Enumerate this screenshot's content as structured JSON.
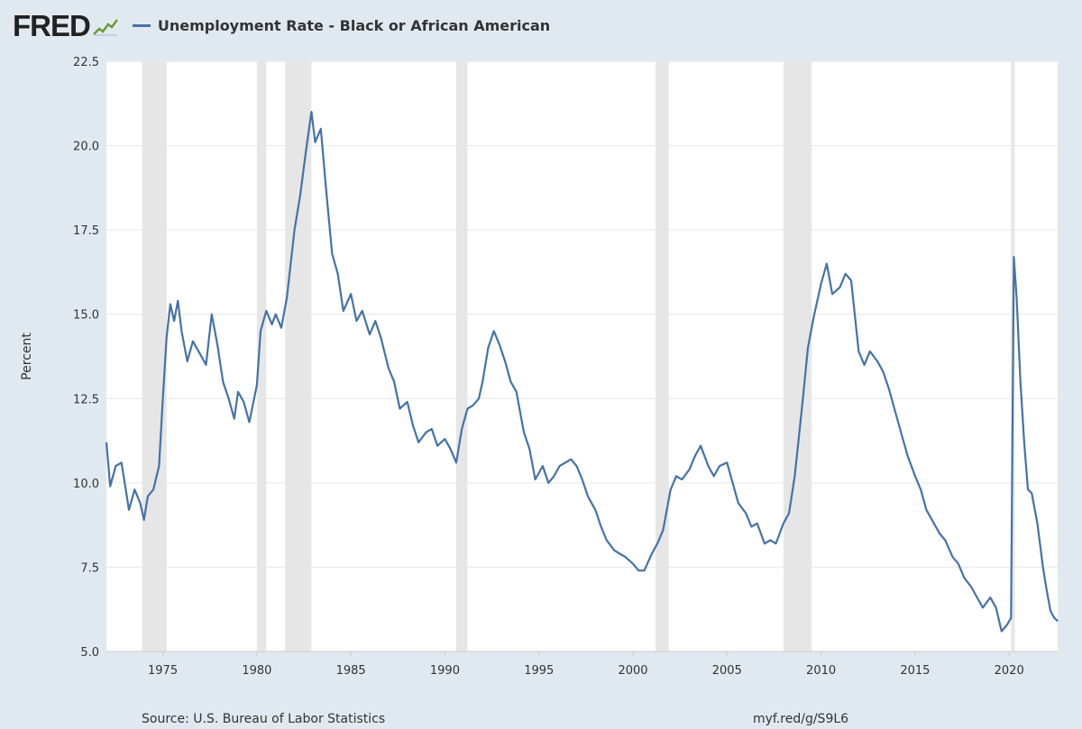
{
  "header": {
    "logo_text": "FRED",
    "logo_icon": "trend-line-icon",
    "legend_label": "Unemployment Rate - Black or African American"
  },
  "footer": {
    "source": "Source: U.S. Bureau of Labor Statistics",
    "link": "myf.red/g/S9L6"
  },
  "colors": {
    "line": "#4572a7",
    "background": "#e1e9f0",
    "plot": "#ffffff",
    "recession": "#e6e6e6",
    "grid": "#e6e6e6"
  },
  "chart_data": {
    "type": "line",
    "title": "",
    "xlabel": "",
    "ylabel": "Percent",
    "xlim": [
      1972.0,
      2022.58
    ],
    "ylim": [
      5.0,
      22.5
    ],
    "grid": "horizontal",
    "legend_position": "top-left",
    "x_ticks": [
      "1975",
      "1980",
      "1985",
      "1990",
      "1995",
      "2000",
      "2005",
      "2010",
      "2015",
      "2020"
    ],
    "y_ticks": [
      "5.0",
      "7.5",
      "10.0",
      "12.5",
      "15.0",
      "17.5",
      "20.0",
      "22.5"
    ],
    "recessions": [
      [
        1973.9,
        1975.2
      ],
      [
        1980.0,
        1980.5
      ],
      [
        1981.5,
        1982.9
      ],
      [
        1990.6,
        1991.2
      ],
      [
        2001.2,
        2001.9
      ],
      [
        2008.0,
        2009.5
      ],
      [
        2020.1,
        2020.3
      ]
    ],
    "series": [
      {
        "name": "Unemployment Rate - Black or African American",
        "points": [
          [
            1972.0,
            11.2
          ],
          [
            1972.2,
            9.9
          ],
          [
            1972.5,
            10.5
          ],
          [
            1972.8,
            10.6
          ],
          [
            1973.0,
            9.9
          ],
          [
            1973.2,
            9.2
          ],
          [
            1973.5,
            9.8
          ],
          [
            1973.8,
            9.4
          ],
          [
            1974.0,
            8.9
          ],
          [
            1974.2,
            9.6
          ],
          [
            1974.5,
            9.8
          ],
          [
            1974.8,
            10.5
          ],
          [
            1975.0,
            12.5
          ],
          [
            1975.2,
            14.3
          ],
          [
            1975.4,
            15.3
          ],
          [
            1975.6,
            14.8
          ],
          [
            1975.8,
            15.4
          ],
          [
            1976.0,
            14.5
          ],
          [
            1976.3,
            13.6
          ],
          [
            1976.6,
            14.2
          ],
          [
            1977.0,
            13.8
          ],
          [
            1977.3,
            13.5
          ],
          [
            1977.6,
            15.0
          ],
          [
            1977.9,
            14.1
          ],
          [
            1978.2,
            13.0
          ],
          [
            1978.5,
            12.5
          ],
          [
            1978.8,
            11.9
          ],
          [
            1979.0,
            12.7
          ],
          [
            1979.3,
            12.4
          ],
          [
            1979.6,
            11.8
          ],
          [
            1980.0,
            12.9
          ],
          [
            1980.2,
            14.5
          ],
          [
            1980.5,
            15.1
          ],
          [
            1980.8,
            14.7
          ],
          [
            1981.0,
            15.0
          ],
          [
            1981.3,
            14.6
          ],
          [
            1981.6,
            15.5
          ],
          [
            1982.0,
            17.5
          ],
          [
            1982.3,
            18.5
          ],
          [
            1982.6,
            19.8
          ],
          [
            1982.9,
            21.0
          ],
          [
            1983.1,
            20.1
          ],
          [
            1983.4,
            20.5
          ],
          [
            1983.7,
            18.6
          ],
          [
            1984.0,
            16.8
          ],
          [
            1984.3,
            16.2
          ],
          [
            1984.6,
            15.1
          ],
          [
            1985.0,
            15.6
          ],
          [
            1985.3,
            14.8
          ],
          [
            1985.6,
            15.1
          ],
          [
            1986.0,
            14.4
          ],
          [
            1986.3,
            14.8
          ],
          [
            1986.6,
            14.3
          ],
          [
            1987.0,
            13.4
          ],
          [
            1987.3,
            13.0
          ],
          [
            1987.6,
            12.2
          ],
          [
            1988.0,
            12.4
          ],
          [
            1988.3,
            11.7
          ],
          [
            1988.6,
            11.2
          ],
          [
            1989.0,
            11.5
          ],
          [
            1989.3,
            11.6
          ],
          [
            1989.6,
            11.1
          ],
          [
            1990.0,
            11.3
          ],
          [
            1990.3,
            11.0
          ],
          [
            1990.6,
            10.6
          ],
          [
            1990.9,
            11.6
          ],
          [
            1991.2,
            12.2
          ],
          [
            1991.5,
            12.3
          ],
          [
            1991.8,
            12.5
          ],
          [
            1992.0,
            13.0
          ],
          [
            1992.3,
            14.0
          ],
          [
            1992.6,
            14.5
          ],
          [
            1992.9,
            14.1
          ],
          [
            1993.2,
            13.6
          ],
          [
            1993.5,
            13.0
          ],
          [
            1993.8,
            12.7
          ],
          [
            1994.2,
            11.5
          ],
          [
            1994.5,
            11.0
          ],
          [
            1994.8,
            10.1
          ],
          [
            1995.2,
            10.5
          ],
          [
            1995.5,
            10.0
          ],
          [
            1995.8,
            10.2
          ],
          [
            1996.1,
            10.5
          ],
          [
            1996.4,
            10.6
          ],
          [
            1996.7,
            10.7
          ],
          [
            1997.0,
            10.5
          ],
          [
            1997.3,
            10.1
          ],
          [
            1997.6,
            9.6
          ],
          [
            1998.0,
            9.2
          ],
          [
            1998.3,
            8.7
          ],
          [
            1998.6,
            8.3
          ],
          [
            1999.0,
            8.0
          ],
          [
            1999.3,
            7.9
          ],
          [
            1999.6,
            7.8
          ],
          [
            2000.0,
            7.6
          ],
          [
            2000.3,
            7.4
          ],
          [
            2000.6,
            7.4
          ],
          [
            2001.0,
            7.9
          ],
          [
            2001.3,
            8.2
          ],
          [
            2001.6,
            8.6
          ],
          [
            2002.0,
            9.8
          ],
          [
            2002.3,
            10.2
          ],
          [
            2002.6,
            10.1
          ],
          [
            2003.0,
            10.4
          ],
          [
            2003.3,
            10.8
          ],
          [
            2003.6,
            11.1
          ],
          [
            2004.0,
            10.5
          ],
          [
            2004.3,
            10.2
          ],
          [
            2004.6,
            10.5
          ],
          [
            2005.0,
            10.6
          ],
          [
            2005.3,
            10.0
          ],
          [
            2005.6,
            9.4
          ],
          [
            2006.0,
            9.1
          ],
          [
            2006.3,
            8.7
          ],
          [
            2006.6,
            8.8
          ],
          [
            2007.0,
            8.2
          ],
          [
            2007.3,
            8.3
          ],
          [
            2007.6,
            8.2
          ],
          [
            2008.0,
            8.8
          ],
          [
            2008.3,
            9.1
          ],
          [
            2008.6,
            10.2
          ],
          [
            2009.0,
            12.3
          ],
          [
            2009.3,
            14.0
          ],
          [
            2009.6,
            14.9
          ],
          [
            2010.0,
            15.9
          ],
          [
            2010.3,
            16.5
          ],
          [
            2010.6,
            15.6
          ],
          [
            2011.0,
            15.8
          ],
          [
            2011.3,
            16.2
          ],
          [
            2011.6,
            16.0
          ],
          [
            2012.0,
            13.9
          ],
          [
            2012.3,
            13.5
          ],
          [
            2012.6,
            13.9
          ],
          [
            2013.0,
            13.6
          ],
          [
            2013.3,
            13.3
          ],
          [
            2013.6,
            12.8
          ],
          [
            2014.0,
            12.0
          ],
          [
            2014.3,
            11.4
          ],
          [
            2014.6,
            10.8
          ],
          [
            2015.0,
            10.2
          ],
          [
            2015.3,
            9.8
          ],
          [
            2015.6,
            9.2
          ],
          [
            2016.0,
            8.8
          ],
          [
            2016.3,
            8.5
          ],
          [
            2016.6,
            8.3
          ],
          [
            2017.0,
            7.8
          ],
          [
            2017.3,
            7.6
          ],
          [
            2017.6,
            7.2
          ],
          [
            2018.0,
            6.9
          ],
          [
            2018.3,
            6.6
          ],
          [
            2018.6,
            6.3
          ],
          [
            2019.0,
            6.6
          ],
          [
            2019.3,
            6.3
          ],
          [
            2019.6,
            5.6
          ],
          [
            2019.9,
            5.8
          ],
          [
            2020.1,
            6.0
          ],
          [
            2020.25,
            16.7
          ],
          [
            2020.4,
            15.5
          ],
          [
            2020.6,
            13.0
          ],
          [
            2020.8,
            11.2
          ],
          [
            2021.0,
            9.8
          ],
          [
            2021.2,
            9.7
          ],
          [
            2021.5,
            8.8
          ],
          [
            2021.8,
            7.5
          ],
          [
            2022.0,
            6.8
          ],
          [
            2022.2,
            6.2
          ],
          [
            2022.4,
            6.0
          ],
          [
            2022.58,
            5.9
          ]
        ]
      }
    ]
  }
}
